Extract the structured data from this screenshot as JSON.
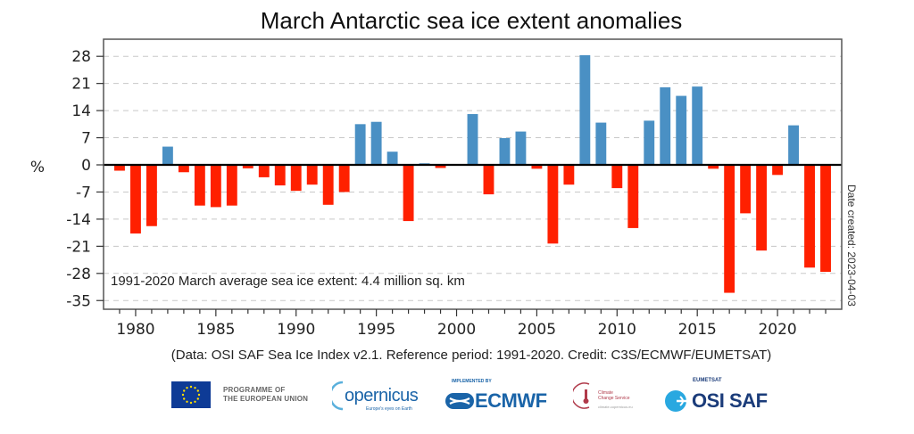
{
  "chart_data": {
    "type": "bar",
    "title": "March Antarctic sea ice extent anomalies",
    "xlabel": "",
    "ylabel": "%",
    "x": [
      1979,
      1980,
      1981,
      1982,
      1983,
      1984,
      1985,
      1986,
      1987,
      1988,
      1989,
      1990,
      1991,
      1992,
      1993,
      1994,
      1995,
      1996,
      1997,
      1998,
      1999,
      2000,
      2001,
      2002,
      2003,
      2004,
      2005,
      2006,
      2007,
      2008,
      2009,
      2010,
      2011,
      2012,
      2013,
      2014,
      2015,
      2016,
      2017,
      2018,
      2019,
      2020,
      2021,
      2022,
      2023
    ],
    "values": [
      -1.5,
      -17.7,
      -15.8,
      4.7,
      -1.9,
      -10.5,
      -10.9,
      -10.5,
      -0.9,
      -3.2,
      -5.3,
      -6.7,
      -5.1,
      -10.3,
      -7.0,
      10.5,
      11.1,
      3.4,
      -14.5,
      0.4,
      -0.8,
      0.0,
      13.1,
      -7.6,
      6.9,
      8.6,
      -1.0,
      -20.3,
      -5.1,
      28.3,
      10.9,
      -6.0,
      -16.3,
      11.4,
      20.0,
      17.8,
      20.2,
      -1.0,
      -33.0,
      -12.5,
      -22.1,
      -2.6,
      10.2,
      -26.5,
      -27.6
    ],
    "ylim": [
      -35,
      31
    ],
    "xlim": [
      1978,
      2024
    ],
    "yticks": [
      28,
      21,
      14,
      7,
      0,
      -7,
      -14,
      -21,
      -28,
      -35
    ],
    "xticks": [
      1980,
      1985,
      1990,
      1995,
      2000,
      2005,
      2010,
      2015,
      2020
    ],
    "grid": true,
    "positive_color": "#4a90c4",
    "negative_color": "#ff2000",
    "annotation": "1991-2020 March average sea ice extent: 4.4 million sq. km",
    "date_created": "Date created: 2023-04-03",
    "credit": "(Data: OSI SAF Sea Ice Index v2.1.  Reference period: 1991-2020.  Credit: C3S/ECMWF/EUMETSAT)"
  },
  "logos": {
    "eu_line1": "PROGRAMME OF",
    "eu_line2": "THE EUROPEAN UNION",
    "copernicus": "opernicus",
    "copernicus_c": "C",
    "copernicus_tagline": "Europe's eyes on Earth",
    "ecmwf_implemented": "IMPLEMENTED BY",
    "ecmwf": "ECMWF",
    "c3s_line1": "Climate",
    "c3s_line2": "Change Service",
    "c3s_url": "climate.copernicus.eu",
    "osi_top": "EUMETSAT",
    "osi": "OSI SAF"
  }
}
